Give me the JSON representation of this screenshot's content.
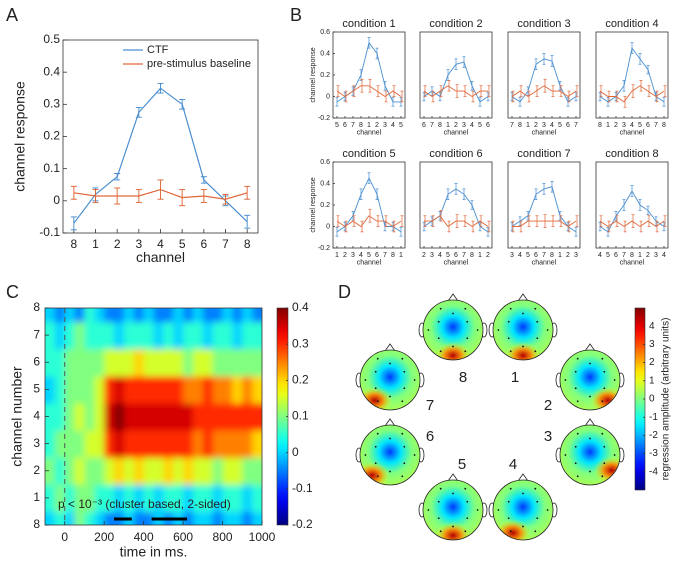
{
  "chart_data": [
    {
      "type": "line",
      "panel": "A",
      "categories": [
        "8",
        "1",
        "2",
        "3",
        "4",
        "5",
        "6",
        "7",
        "8"
      ],
      "xlabel": "channel",
      "ylabel": "channel response",
      "ylim": [
        -0.1,
        0.5
      ],
      "yticks": [
        -0.1,
        0,
        0.1,
        0.2,
        0.3,
        0.4,
        0.5
      ],
      "legend": "upper right",
      "series": [
        {
          "name": "CTF",
          "color": "#4a8fd0",
          "values": [
            -0.07,
            0.02,
            0.075,
            0.275,
            0.35,
            0.3,
            0.065,
            0,
            -0.065
          ],
          "errors": [
            0.02,
            0.02,
            0.01,
            0.015,
            0.015,
            0.015,
            0.01,
            0.015,
            0.02
          ]
        },
        {
          "name": "pre-stimulus baseline",
          "color": "#e0683a",
          "values": [
            0.025,
            0.015,
            0.015,
            0.015,
            0.035,
            0.01,
            0.015,
            0.005,
            0.025
          ],
          "errors": [
            0.02,
            0.02,
            0.025,
            0.02,
            0.03,
            0.025,
            0.02,
            0.015,
            0.02
          ]
        }
      ]
    },
    {
      "type": "line",
      "panel": "B",
      "title": "condition 1",
      "categories": [
        "5",
        "6",
        "7",
        "8",
        "1",
        "2",
        "3",
        "4",
        "5"
      ],
      "xlabel": "channel",
      "ylabel": "channel response",
      "ylim": [
        -0.2,
        0.6
      ],
      "yticks": [
        -0.2,
        0,
        0.2,
        0.4,
        0.6
      ],
      "series": [
        {
          "color": "#4a8fd0",
          "values": [
            -0.05,
            0,
            0.05,
            0.2,
            0.5,
            0.4,
            0.1,
            -0.05,
            -0.05
          ],
          "errors": [
            0.04,
            0.04,
            0.04,
            0.05,
            0.05,
            0.05,
            0.04,
            0.04,
            0.04
          ]
        },
        {
          "color": "#e0683a",
          "values": [
            0.05,
            0.0,
            0.05,
            0.1,
            0.1,
            0.05,
            0.0,
            0.05,
            0.0
          ],
          "errors": [
            0.05,
            0.05,
            0.05,
            0.06,
            0.06,
            0.05,
            0.05,
            0.05,
            0.05
          ]
        }
      ]
    },
    {
      "type": "line",
      "title": "condition 2",
      "categories": [
        "6",
        "7",
        "8",
        "1",
        "2",
        "3",
        "4",
        "5",
        "6"
      ],
      "xlabel": "channel",
      "ylim": [
        -0.2,
        0.6
      ],
      "series": [
        {
          "color": "#4a8fd0",
          "values": [
            0.0,
            0.05,
            0.0,
            0.2,
            0.3,
            0.32,
            0.1,
            -0.05,
            0.0
          ],
          "errors": [
            0.04,
            0.04,
            0.04,
            0.05,
            0.05,
            0.05,
            0.04,
            0.04,
            0.04
          ]
        },
        {
          "color": "#e0683a",
          "values": [
            0.05,
            0.0,
            0.05,
            0.1,
            0.05,
            0.05,
            0.0,
            0.05,
            0.05
          ],
          "errors": [
            0.05,
            0.05,
            0.05,
            0.05,
            0.06,
            0.05,
            0.05,
            0.05,
            0.05
          ]
        }
      ]
    },
    {
      "type": "line",
      "title": "condition 3",
      "categories": [
        "7",
        "8",
        "1",
        "2",
        "3",
        "4",
        "5",
        "6",
        "7"
      ],
      "xlabel": "channel",
      "ylim": [
        -0.2,
        0.6
      ],
      "series": [
        {
          "color": "#4a8fd0",
          "values": [
            0.0,
            -0.05,
            0.05,
            0.3,
            0.35,
            0.33,
            0.1,
            -0.05,
            0.0
          ],
          "errors": [
            0.04,
            0.04,
            0.04,
            0.05,
            0.05,
            0.05,
            0.04,
            0.04,
            0.04
          ]
        },
        {
          "color": "#e0683a",
          "values": [
            0.0,
            0.05,
            0.0,
            0.05,
            0.1,
            0.05,
            0.05,
            0.0,
            0.05
          ],
          "errors": [
            0.05,
            0.05,
            0.05,
            0.05,
            0.06,
            0.05,
            0.05,
            0.05,
            0.05
          ]
        }
      ]
    },
    {
      "type": "line",
      "title": "condition 4",
      "categories": [
        "8",
        "1",
        "2",
        "3",
        "4",
        "5",
        "6",
        "7",
        "8"
      ],
      "xlabel": "channel",
      "ylim": [
        -0.2,
        0.6
      ],
      "series": [
        {
          "color": "#4a8fd0",
          "values": [
            0.0,
            -0.05,
            0.0,
            0.1,
            0.45,
            0.35,
            0.25,
            0.0,
            -0.05
          ],
          "errors": [
            0.04,
            0.04,
            0.04,
            0.05,
            0.05,
            0.05,
            0.04,
            0.04,
            0.04
          ]
        },
        {
          "color": "#e0683a",
          "values": [
            0.05,
            0.0,
            0.0,
            -0.05,
            0.05,
            0.1,
            0.05,
            0.0,
            0.05
          ],
          "errors": [
            0.05,
            0.05,
            0.05,
            0.05,
            0.06,
            0.05,
            0.05,
            0.05,
            0.05
          ]
        }
      ]
    },
    {
      "type": "line",
      "title": "condition 5",
      "categories": [
        "1",
        "2",
        "3",
        "4",
        "5",
        "6",
        "7",
        "8",
        "1"
      ],
      "xlabel": "channel",
      "ylabel": "channel response",
      "ylim": [
        -0.2,
        0.6
      ],
      "yticks": [
        -0.2,
        0,
        0.2,
        0.4,
        0.6
      ],
      "series": [
        {
          "color": "#4a8fd0",
          "values": [
            -0.05,
            0.0,
            0.1,
            0.3,
            0.45,
            0.3,
            0.0,
            0.0,
            -0.05
          ],
          "errors": [
            0.04,
            0.04,
            0.04,
            0.05,
            0.05,
            0.05,
            0.04,
            0.04,
            0.04
          ]
        },
        {
          "color": "#e0683a",
          "values": [
            0.05,
            0.0,
            0.05,
            0.0,
            0.1,
            0.05,
            0.05,
            0.0,
            0.05
          ],
          "errors": [
            0.05,
            0.05,
            0.05,
            0.05,
            0.06,
            0.05,
            0.05,
            0.05,
            0.05
          ]
        }
      ]
    },
    {
      "type": "line",
      "title": "condition 6",
      "categories": [
        "2",
        "3",
        "4",
        "5",
        "6",
        "7",
        "8",
        "1",
        "2"
      ],
      "xlabel": "channel",
      "ylim": [
        -0.2,
        0.6
      ],
      "series": [
        {
          "color": "#4a8fd0",
          "values": [
            0.0,
            0.05,
            0.1,
            0.3,
            0.35,
            0.3,
            0.2,
            0.0,
            -0.05
          ],
          "errors": [
            0.04,
            0.04,
            0.04,
            0.05,
            0.05,
            0.05,
            0.04,
            0.04,
            0.04
          ]
        },
        {
          "color": "#e0683a",
          "values": [
            0.05,
            0.05,
            0.1,
            0.0,
            0.05,
            0.05,
            0.0,
            0.05,
            0.0
          ],
          "errors": [
            0.05,
            0.05,
            0.05,
            0.05,
            0.06,
            0.05,
            0.05,
            0.05,
            0.05
          ]
        }
      ]
    },
    {
      "type": "line",
      "title": "condition 7",
      "categories": [
        "3",
        "4",
        "5",
        "6",
        "7",
        "8",
        "1",
        "2",
        "3"
      ],
      "xlabel": "channel",
      "ylim": [
        -0.2,
        0.6
      ],
      "series": [
        {
          "color": "#4a8fd0",
          "values": [
            0.0,
            0.05,
            0.1,
            0.3,
            0.35,
            0.37,
            0.1,
            0.0,
            -0.05
          ],
          "errors": [
            0.04,
            0.04,
            0.04,
            0.05,
            0.05,
            0.05,
            0.04,
            0.04,
            0.04
          ]
        },
        {
          "color": "#e0683a",
          "values": [
            0.0,
            0.0,
            0.05,
            0.05,
            0.05,
            0.05,
            0.05,
            0.0,
            0.05
          ],
          "errors": [
            0.05,
            0.05,
            0.05,
            0.05,
            0.06,
            0.05,
            0.05,
            0.05,
            0.05
          ]
        }
      ]
    },
    {
      "type": "line",
      "title": "condition 8",
      "categories": [
        "4",
        "5",
        "6",
        "7",
        "8",
        "1",
        "2",
        "3",
        "4"
      ],
      "xlabel": "channel",
      "ylim": [
        -0.2,
        0.6
      ],
      "series": [
        {
          "color": "#4a8fd0",
          "values": [
            0.0,
            -0.05,
            0.1,
            0.2,
            0.33,
            0.2,
            0.15,
            0.05,
            0.0
          ],
          "errors": [
            0.04,
            0.04,
            0.04,
            0.05,
            0.05,
            0.05,
            0.04,
            0.04,
            0.04
          ]
        },
        {
          "color": "#e0683a",
          "values": [
            0.05,
            0.0,
            0.05,
            0.0,
            0.05,
            0.0,
            0.05,
            0.0,
            0.05
          ],
          "errors": [
            0.05,
            0.05,
            0.05,
            0.05,
            0.06,
            0.05,
            0.05,
            0.05,
            0.05
          ]
        }
      ]
    },
    {
      "type": "heatmap",
      "panel": "C",
      "xlabel": "time in ms.",
      "ylabel": "channel number",
      "colormap": "jet",
      "x_bins": [
        -100,
        -50,
        0,
        50,
        100,
        150,
        200,
        250,
        300,
        350,
        400,
        450,
        500,
        550,
        600,
        650,
        700,
        750,
        800,
        850,
        900,
        950,
        1000
      ],
      "categories": [
        "8",
        "1",
        "2",
        "3",
        "4",
        "5",
        "6",
        "7",
        "8"
      ],
      "values": [
        [
          0.0,
          0.05,
          0.0,
          0.1,
          0.05,
          0.0,
          -0.05,
          -0.05,
          0.0,
          -0.05,
          -0.05,
          0.0,
          -0.05,
          0.0,
          -0.05,
          0.0,
          0.0,
          -0.05,
          0.0,
          0.0,
          -0.05,
          0.0
        ],
        [
          0.05,
          0.1,
          0.05,
          0.1,
          0.1,
          0.05,
          0.05,
          0.0,
          0.05,
          0.0,
          0.05,
          0.0,
          0.05,
          0.05,
          0.0,
          0.05,
          0.05,
          0.0,
          0.05,
          0.05,
          0.0,
          0.05
        ],
        [
          0.1,
          0.05,
          0.1,
          0.15,
          0.1,
          0.1,
          0.15,
          0.2,
          0.15,
          0.2,
          0.15,
          0.15,
          0.2,
          0.15,
          0.2,
          0.15,
          0.15,
          0.1,
          0.15,
          0.15,
          0.1,
          0.1
        ],
        [
          0.05,
          0.1,
          0.1,
          0.1,
          0.15,
          0.15,
          0.3,
          0.35,
          0.3,
          0.3,
          0.3,
          0.3,
          0.3,
          0.3,
          0.3,
          0.25,
          0.3,
          0.25,
          0.25,
          0.25,
          0.25,
          0.2
        ],
        [
          0.05,
          0.05,
          0.1,
          0.15,
          0.1,
          0.15,
          0.35,
          0.4,
          0.35,
          0.35,
          0.35,
          0.35,
          0.35,
          0.35,
          0.35,
          0.3,
          0.3,
          0.3,
          0.3,
          0.3,
          0.3,
          0.3
        ],
        [
          0.0,
          0.05,
          0.1,
          0.1,
          0.1,
          0.15,
          0.3,
          0.35,
          0.3,
          0.3,
          0.3,
          0.3,
          0.3,
          0.3,
          0.25,
          0.25,
          0.3,
          0.25,
          0.25,
          0.2,
          0.25,
          0.2
        ],
        [
          0.05,
          0.05,
          0.1,
          0.1,
          0.1,
          0.1,
          0.15,
          0.15,
          0.15,
          0.2,
          0.15,
          0.15,
          0.15,
          0.15,
          0.1,
          0.15,
          0.15,
          0.1,
          0.1,
          0.1,
          0.1,
          0.1
        ],
        [
          0.05,
          0.0,
          0.05,
          0.1,
          0.05,
          0.05,
          0.05,
          0.0,
          0.05,
          0.05,
          0.05,
          0.0,
          0.05,
          0.0,
          0.05,
          0.05,
          0.0,
          0.05,
          0.05,
          0.0,
          0.05,
          0.05
        ],
        [
          0.0,
          -0.05,
          0.0,
          -0.05,
          0.05,
          0.0,
          -0.05,
          -0.05,
          0.0,
          -0.05,
          0.0,
          -0.05,
          -0.05,
          0.0,
          -0.05,
          0.0,
          -0.05,
          -0.05,
          0.0,
          -0.05,
          0.0,
          -0.05
        ]
      ],
      "xlim": [
        -100,
        1000
      ],
      "xticks": [
        0,
        200,
        400,
        600,
        800,
        1000
      ],
      "event_line": 0,
      "clim": [
        -0.2,
        0.4
      ],
      "colorbar_ticks": [
        -0.2,
        -0.1,
        0,
        0.1,
        0.2,
        0.3,
        0.4
      ],
      "annotation": "p < 10⁻³ (cluster based, 2-sided)",
      "significant_intervals": [
        [
          250,
          340
        ],
        [
          440,
          620
        ]
      ]
    },
    {
      "type": "topoplot",
      "panel": "D",
      "conditions": [
        "1",
        "2",
        "3",
        "4",
        "5",
        "6",
        "7",
        "8"
      ],
      "colormap": "jet",
      "clim": [
        -5,
        5
      ],
      "colorbar_ticks": [
        -4,
        -3,
        -2,
        -1,
        0,
        1,
        2,
        3,
        4
      ],
      "colorbar_label": "regression amplitude (arbitrary units)"
    }
  ]
}
